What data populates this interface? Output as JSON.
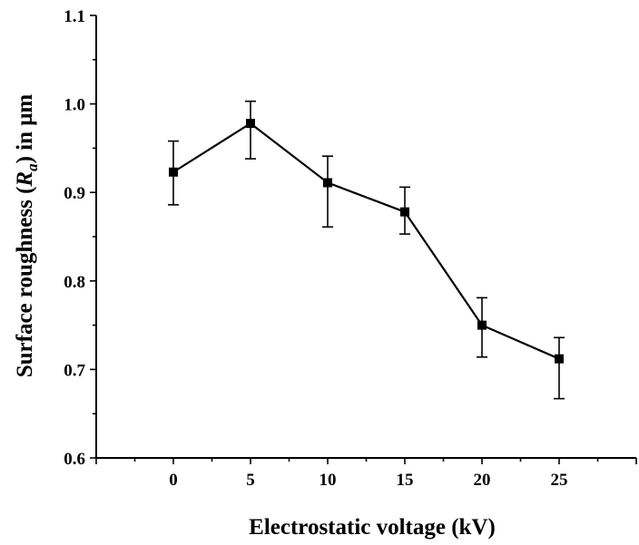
{
  "chart_data": {
    "type": "line",
    "xlabel": "Electrostatic voltage (kV)",
    "ylabel": {
      "prefix": "Surface roughness (",
      "var": "R",
      "sub": "a",
      "suffix": ") in μm"
    },
    "x": [
      0,
      5,
      10,
      15,
      20,
      25
    ],
    "y": [
      0.923,
      0.978,
      0.911,
      0.878,
      0.75,
      0.712
    ],
    "err_upper": [
      0.958,
      1.003,
      0.941,
      0.906,
      0.781,
      0.736
    ],
    "err_lower": [
      0.886,
      0.938,
      0.861,
      0.853,
      0.714,
      0.667
    ],
    "xlim": [
      -5,
      30
    ],
    "ylim": [
      0.6,
      1.1
    ],
    "x_ticks": [
      "0",
      "5",
      "10",
      "15",
      "20",
      "25"
    ],
    "y_ticks": [
      "0.6",
      "0.7",
      "0.8",
      "0.9",
      "1.0",
      "1.1"
    ],
    "marker": "square",
    "color": "#000000",
    "grid": false
  }
}
